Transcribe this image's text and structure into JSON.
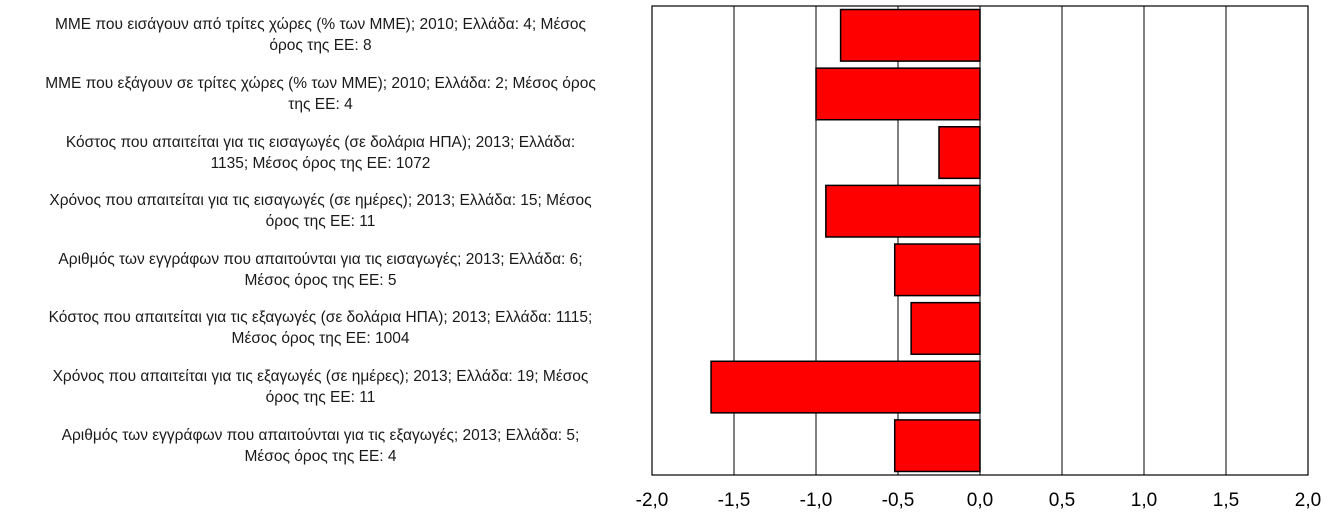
{
  "chart_data": {
    "type": "bar",
    "orientation": "horizontal",
    "categories": [
      "ΜΜΕ που εισάγουν από τρίτες χώρες (% των ΜΜΕ); 2010; Ελλάδα: 4; Μέσος όρος της ΕΕ: 8",
      "ΜΜΕ που εξάγουν σε τρίτες χώρες (% των ΜΜΕ); 2010; Ελλάδα: 2; Μέσος όρος της ΕΕ: 4",
      "Κόστος που απαιτείται για τις εισαγωγές (σε δολάρια ΗΠΑ); 2013; Ελλάδα: 1135; Μέσος όρος της ΕΕ: 1072",
      "Χρόνος που απαιτείται για τις εισαγωγές (σε ημέρες); 2013; Ελλάδα: 15; Μέσος όρος της ΕΕ: 11",
      "Αριθμός των εγγράφων που απαιτούνται για τις εισαγωγές; 2013; Ελλάδα: 6; Μέσος όρος της ΕΕ: 5",
      "Κόστος που απαιτείται για τις εξαγωγές (σε δολάρια ΗΠΑ); 2013; Ελλάδα: 1115; Μέσος όρος της ΕΕ: 1004",
      "Χρόνος που απαιτείται για τις εξαγωγές (σε ημέρες); 2013; Ελλάδα: 19; Μέσος όρος της ΕΕ: 11",
      "Αριθμός των εγγράφων που απαιτούνται για τις εξαγωγές; 2013; Ελλάδα: 5; Μέσος όρος της ΕΕ: 4"
    ],
    "label_lines": [
      [
        "ΜΜΕ που εισάγουν από τρίτες χώρες (% των ΜΜΕ); 2010; Ελλάδα: 4; Μέσος",
        "όρος της ΕΕ: 8"
      ],
      [
        "ΜΜΕ που εξάγουν σε τρίτες χώρες (% των ΜΜΕ); 2010; Ελλάδα: 2; Μέσος όρος",
        "της ΕΕ: 4"
      ],
      [
        "Κόστος που απαιτείται για τις εισαγωγές (σε δολάρια ΗΠΑ); 2013; Ελλάδα:",
        "1135; Μέσος όρος της ΕΕ: 1072"
      ],
      [
        "Χρόνος που απαιτείται για τις εισαγωγές (σε ημέρες); 2013; Ελλάδα: 15; Μέσος",
        "όρος της ΕΕ: 11"
      ],
      [
        "Αριθμός των εγγράφων που απαιτούνται για τις εισαγωγές; 2013; Ελλάδα: 6;",
        "Μέσος όρος της ΕΕ: 5"
      ],
      [
        "Κόστος που απαιτείται για τις εξαγωγές (σε δολάρια ΗΠΑ); 2013; Ελλάδα: 1115;",
        "Μέσος όρος της ΕΕ: 1004"
      ],
      [
        "Χρόνος που απαιτείται για τις εξαγωγές (σε ημέρες); 2013; Ελλάδα: 19; Μέσος",
        "όρος της ΕΕ: 11"
      ],
      [
        "Αριθμός των εγγράφων που απαιτούνται για τις εξαγωγές; 2013; Ελλάδα: 5;",
        "Μέσος όρος της ΕΕ: 4"
      ]
    ],
    "values": [
      -0.85,
      -1.0,
      -0.25,
      -0.94,
      -0.52,
      -0.42,
      -1.64,
      -0.52
    ],
    "xlim": [
      -2.0,
      2.0
    ],
    "xticks": [
      "-2,0",
      "-1,5",
      "-1,0",
      "-0,5",
      "0,0",
      "0,5",
      "1,0",
      "1,5",
      "2,0"
    ],
    "xtick_values": [
      -2.0,
      -1.5,
      -1.0,
      -0.5,
      0.0,
      0.5,
      1.0,
      1.5,
      2.0
    ],
    "grid": "vertical",
    "legend": "none",
    "bar_color": "#ff0000",
    "bar_edge_color": "#000000",
    "title": "",
    "xlabel": "",
    "ylabel": ""
  }
}
